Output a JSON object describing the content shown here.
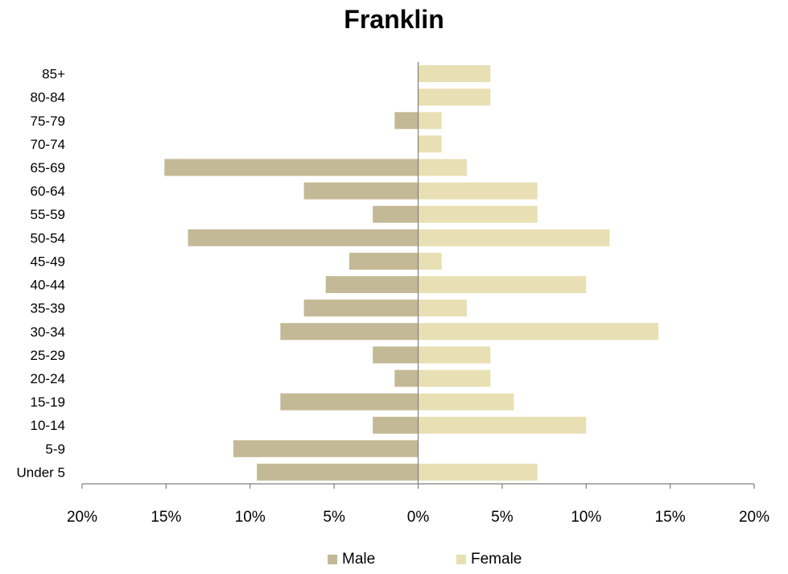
{
  "chart_data": {
    "type": "bar",
    "orientation": "horizontal",
    "title": "Franklin",
    "categories": [
      "85+",
      "80-84",
      "75-79",
      "70-74",
      "65-69",
      "60-64",
      "55-59",
      "50-54",
      "45-49",
      "40-44",
      "35-39",
      "30-34",
      "25-29",
      "20-24",
      "15-19",
      "10-14",
      "5-9",
      "Under 5"
    ],
    "series": [
      {
        "name": "Male",
        "color": "#c4b996",
        "values": [
          0,
          0,
          1.4,
          0,
          15.1,
          6.8,
          2.7,
          13.7,
          4.1,
          5.5,
          6.8,
          8.2,
          2.7,
          1.4,
          8.2,
          2.7,
          11.0,
          9.6
        ]
      },
      {
        "name": "Female",
        "color": "#e8e0b4",
        "values": [
          4.3,
          4.3,
          1.4,
          1.4,
          2.9,
          7.1,
          7.1,
          11.4,
          1.4,
          10.0,
          2.9,
          14.3,
          4.3,
          4.3,
          5.7,
          10.0,
          0,
          7.1
        ]
      }
    ],
    "xlim": [
      -20,
      20
    ],
    "x_ticks": [
      "20%",
      "15%",
      "10%",
      "5%",
      "0%",
      "5%",
      "10%",
      "15%",
      "20%"
    ],
    "grid": false,
    "legend_position": "bottom"
  }
}
